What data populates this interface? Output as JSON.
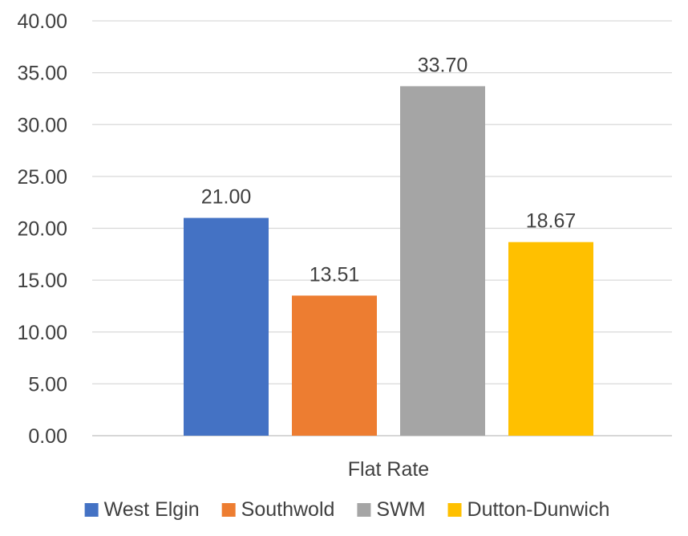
{
  "chart_data": {
    "type": "bar",
    "categories": [
      "Flat Rate"
    ],
    "series": [
      {
        "name": "West Elgin",
        "values": [
          21.0
        ],
        "label": "21.00",
        "color": "#4472C4"
      },
      {
        "name": "Southwold",
        "values": [
          13.51
        ],
        "label": "13.51",
        "color": "#ED7D31"
      },
      {
        "name": "SWM",
        "values": [
          33.7
        ],
        "label": "33.70",
        "color": "#A5A5A5"
      },
      {
        "name": "Dutton-Dunwich",
        "values": [
          18.67
        ],
        "label": "18.67",
        "color": "#FFC000"
      }
    ],
    "ylim": [
      0,
      40
    ],
    "yticks": [
      "0.00",
      "5.00",
      "10.00",
      "15.00",
      "20.00",
      "25.00",
      "30.00",
      "35.00",
      "40.00"
    ],
    "grid": true,
    "legend": "bottom",
    "title": "",
    "xlabel": "",
    "ylabel": ""
  }
}
